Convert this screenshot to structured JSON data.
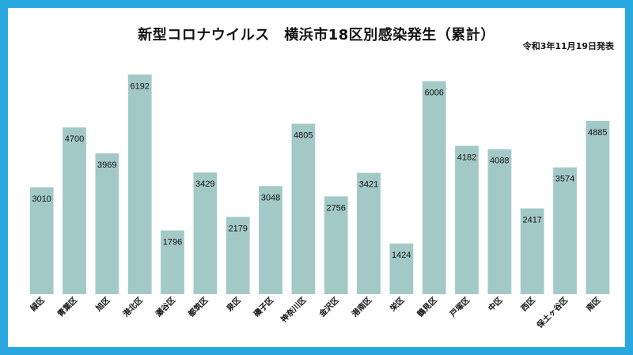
{
  "chart_data": {
    "type": "bar",
    "title": "新型コロナウイルス　横浜市18区別感染発生（累計）",
    "subtitle": "令和3年11月19日発表",
    "categories": [
      "緑区",
      "青葉区",
      "旭区",
      "港北区",
      "瀬谷区",
      "都筑区",
      "泉区",
      "磯子区",
      "神奈川区",
      "金沢区",
      "港南区",
      "栄区",
      "鶴見区",
      "戸塚区",
      "中区",
      "西区",
      "保土ヶ谷区",
      "南区"
    ],
    "values": [
      3010,
      4700,
      3969,
      6192,
      1796,
      3429,
      2179,
      3048,
      4805,
      2756,
      3421,
      1424,
      6006,
      4182,
      4088,
      2417,
      3574,
      4885
    ],
    "ylim": [
      0,
      6600
    ],
    "bar_color": "#a3c9c7",
    "background_color": "#ffffff",
    "frame_color": "#29a8e0"
  }
}
